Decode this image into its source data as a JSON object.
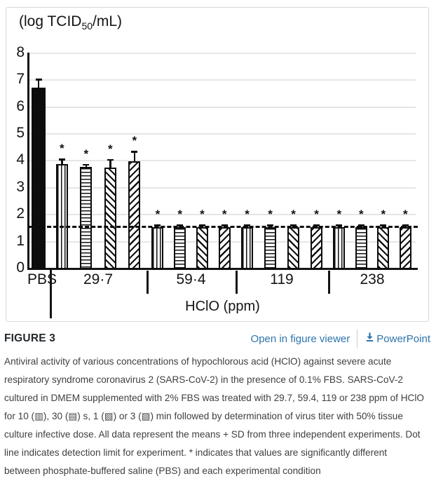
{
  "chart_data": {
    "type": "bar",
    "title": "(log TCID50/mL)",
    "y_axis_title": {
      "prefix": "(log TCID",
      "sub": "50",
      "suffix": "/mL)"
    },
    "xlabel": "HClO (ppm)",
    "ylabel": "(log TCID50/mL)",
    "ylim": [
      0,
      8
    ],
    "yticks": [
      0,
      1,
      2,
      3,
      4,
      5,
      6,
      7,
      8
    ],
    "grid": "horizontal",
    "legend_position": "none (patterns explained in caption)",
    "detection_limit_line": 1.5,
    "significance_marker": "*",
    "pattern_legend": {
      "solid": "PBS control",
      "vertical": "10 s",
      "horizontal": "30 s",
      "diag-down": "1 min",
      "diag-up": "3 min"
    },
    "categories": [
      "PBS",
      "29·7",
      "59·4",
      "119",
      "238"
    ],
    "groups": [
      {
        "label": "PBS",
        "bars": [
          {
            "pattern": "solid",
            "time": "control",
            "value": 6.7,
            "error": 0.3,
            "significant": false
          }
        ]
      },
      {
        "label": "29·7",
        "bars": [
          {
            "pattern": "vertical",
            "time": "10 s",
            "value": 3.85,
            "error": 0.18,
            "significant": true
          },
          {
            "pattern": "horizontal",
            "time": "30 s",
            "value": 3.75,
            "error": 0.08,
            "significant": true
          },
          {
            "pattern": "diag-down",
            "time": "1 min",
            "value": 3.72,
            "error": 0.3,
            "significant": true
          },
          {
            "pattern": "diag-up",
            "time": "3 min",
            "value": 3.95,
            "error": 0.36,
            "significant": true
          }
        ]
      },
      {
        "label": "59·4",
        "bars": [
          {
            "pattern": "vertical",
            "time": "10 s",
            "value": 1.5,
            "error": 0.08,
            "significant": true
          },
          {
            "pattern": "horizontal",
            "time": "30 s",
            "value": 1.5,
            "error": 0.08,
            "significant": true
          },
          {
            "pattern": "diag-down",
            "time": "1 min",
            "value": 1.5,
            "error": 0.08,
            "significant": true
          },
          {
            "pattern": "diag-up",
            "time": "3 min",
            "value": 1.5,
            "error": 0.08,
            "significant": true
          }
        ]
      },
      {
        "label": "119",
        "bars": [
          {
            "pattern": "vertical",
            "time": "10 s",
            "value": 1.5,
            "error": 0.08,
            "significant": true
          },
          {
            "pattern": "horizontal",
            "time": "30 s",
            "value": 1.5,
            "error": 0.08,
            "significant": true
          },
          {
            "pattern": "diag-down",
            "time": "1 min",
            "value": 1.5,
            "error": 0.08,
            "significant": true
          },
          {
            "pattern": "diag-up",
            "time": "3 min",
            "value": 1.5,
            "error": 0.08,
            "significant": true
          }
        ]
      },
      {
        "label": "238",
        "bars": [
          {
            "pattern": "vertical",
            "time": "10 s",
            "value": 1.5,
            "error": 0.08,
            "significant": true
          },
          {
            "pattern": "horizontal",
            "time": "30 s",
            "value": 1.5,
            "error": 0.08,
            "significant": true
          },
          {
            "pattern": "diag-down",
            "time": "1 min",
            "value": 1.5,
            "error": 0.08,
            "significant": true
          },
          {
            "pattern": "diag-up",
            "time": "3 min",
            "value": 1.5,
            "error": 0.08,
            "significant": true
          }
        ]
      }
    ]
  },
  "figure_header": {
    "label": "FIGURE 3",
    "open_in_viewer": "Open in figure viewer",
    "powerpoint": "PowerPoint",
    "powerpoint_icon": "download-arrow-icon"
  },
  "caption": {
    "text": "Antiviral activity of various concentrations of hypochlorous acid (HClO) against severe acute respiratory syndrome coronavirus 2 (SARS-CoV-2) in the presence of 0.1% FBS. SARS-CoV-2 cultured in DMEM supplemented with 2% FBS was treated with 29.7, 59.4, 119 or 238 ppm of HClO for 10 (▥), 30 (▤) s, 1 (▧) or 3 (▨) min followed by determination of virus titer with 50% tissue culture infective dose. All data represent the means + SD from three independent experiments. Dot line indicates detection limit for experiment. * indicates that values are significantly different between phosphate-buffered saline (PBS) and each experimental condition"
  },
  "colors": {
    "link_blue": "#2d74ad",
    "bar_black": "#0d0d0d",
    "gridline": "#e6e6e6",
    "panel_border": "#d8d8d8",
    "caption_text": "#3f3f3f",
    "heading_text": "#23282d"
  }
}
